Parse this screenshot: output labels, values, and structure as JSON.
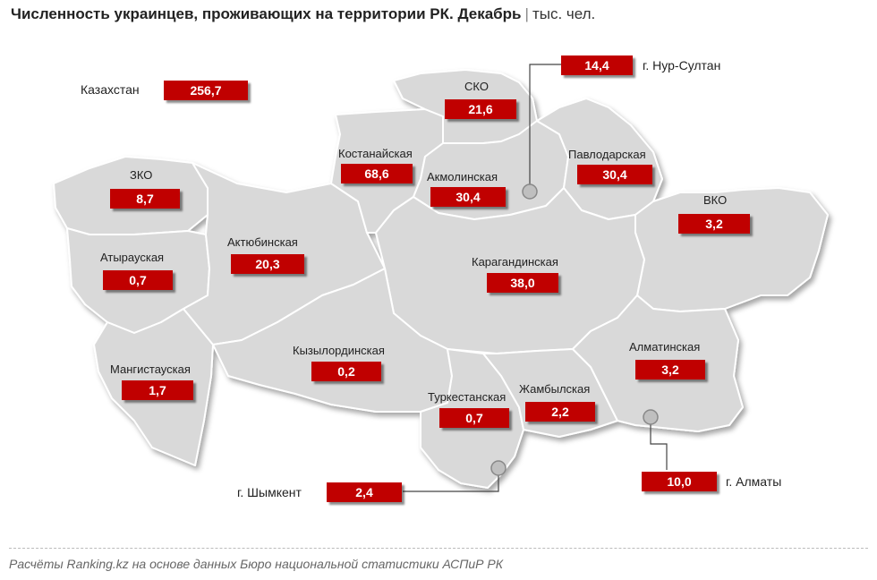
{
  "title": {
    "main": "Численность украинцев, проживающих на территории РК. Декабрь",
    "separator": "|",
    "unit": "тыс. чел."
  },
  "total": {
    "label": "Казахстан",
    "value": "256,7"
  },
  "regions": {
    "sko": {
      "label": "СКО",
      "value": "21,6"
    },
    "kostanay": {
      "label": "Костанайская",
      "value": "68,6"
    },
    "akmola": {
      "label": "Акмолинская",
      "value": "30,4"
    },
    "pavlodar": {
      "label": "Павлодарская",
      "value": "30,4"
    },
    "zko": {
      "label": "ЗКО",
      "value": "8,7"
    },
    "atyrau": {
      "label": "Атырауская",
      "value": "0,7"
    },
    "aktobe": {
      "label": "Актюбинская",
      "value": "20,3"
    },
    "karaganda": {
      "label": "Карагандинская",
      "value": "38,0"
    },
    "vko": {
      "label": "ВКО",
      "value": "3,2"
    },
    "mangistau": {
      "label": "Мангистауская",
      "value": "1,7"
    },
    "kyzylorda": {
      "label": "Кызылординская",
      "value": "0,2"
    },
    "turkestan": {
      "label": "Туркестанская",
      "value": "0,7"
    },
    "zhambyl": {
      "label": "Жамбылская",
      "value": "2,2"
    },
    "almaty_region": {
      "label": "Алматинская",
      "value": "3,2"
    }
  },
  "cities": {
    "nur_sultan": {
      "label": "г. Нур-Султан",
      "value": "14,4"
    },
    "shymkent": {
      "label": "г. Шымкент",
      "value": "2,4"
    },
    "almaty": {
      "label": "г. Алматы",
      "value": "10,0"
    }
  },
  "colors": {
    "value_box": "#c00000",
    "map_fill": "#d9d9d9",
    "border": "#ffffff"
  },
  "footer": "Расчёты Ranking.kz на основе данных Бюро национальной статистики АСПиР РК"
}
